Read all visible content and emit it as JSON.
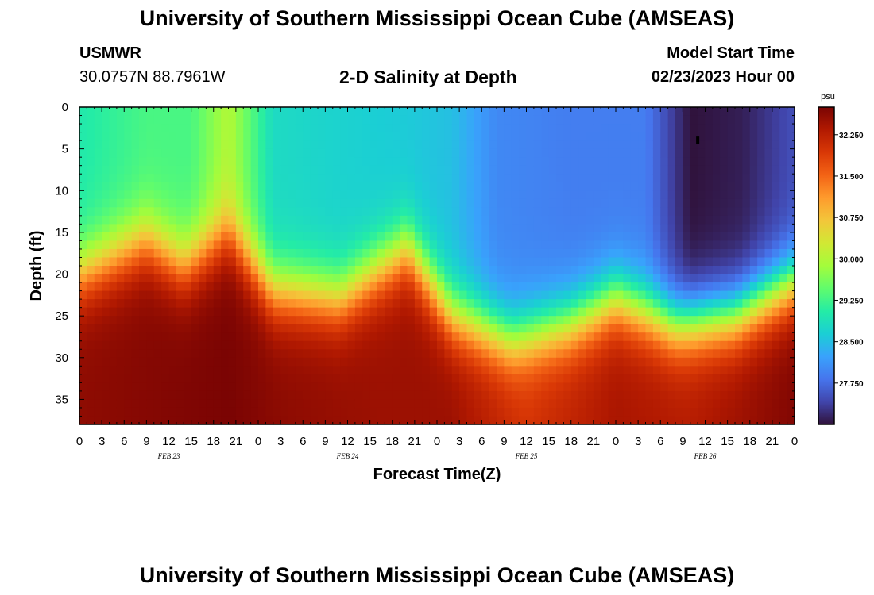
{
  "header": {
    "title": "University of Southern Mississippi Ocean Cube (AMSEAS)",
    "station_id": "USMWR",
    "coordinates": "30.0757N  88.7961W",
    "plot_title": "2-D Salinity at Depth",
    "model_start_label": "Model Start Time",
    "model_start_value": "02/23/2023 Hour 00"
  },
  "footer": {
    "title": "University of Southern Mississippi Ocean Cube (AMSEAS)"
  },
  "chart_data": {
    "type": "heatmap",
    "title": "2-D Salinity at Depth",
    "xlabel": "Forecast Time(Z)",
    "ylabel": "Depth (ft)",
    "x_ticks": [
      "0",
      "3",
      "6",
      "9",
      "12",
      "15",
      "18",
      "21",
      "0",
      "3",
      "6",
      "9",
      "12",
      "15",
      "18",
      "21",
      "0",
      "3",
      "6",
      "9",
      "12",
      "15",
      "18",
      "21",
      "0",
      "3",
      "6",
      "9",
      "12",
      "15",
      "18",
      "21",
      "0"
    ],
    "x_range_hours": [
      0,
      96
    ],
    "date_labels": [
      {
        "hour": 12,
        "text": "FEB 23"
      },
      {
        "hour": 36,
        "text": "FEB 24"
      },
      {
        "hour": 60,
        "text": "FEB 25"
      },
      {
        "hour": 84,
        "text": "FEB 26"
      }
    ],
    "y_ticks": [
      "0",
      "5",
      "10",
      "15",
      "20",
      "25",
      "30",
      "35"
    ],
    "y_range_ft": [
      0,
      38
    ],
    "colorbar": {
      "unit": "psu",
      "range": [
        27.0,
        32.75
      ],
      "tick_values": [
        32.25,
        31.5,
        30.75,
        30.0,
        29.25,
        28.5,
        27.75
      ],
      "tick_labels": [
        "32.250",
        "31.500",
        "30.750",
        "30.000",
        "29.250",
        "28.500",
        "27.750"
      ],
      "colors": [
        "#30123b",
        "#4145ab",
        "#4675ed",
        "#39a2fc",
        "#1bcfd4",
        "#24eca6",
        "#61fc6c",
        "#a4fc3b",
        "#d1e834",
        "#f3c63a",
        "#fe9b2d",
        "#f36315",
        "#d93806",
        "#b11901",
        "#7a0403"
      ]
    },
    "pycnocline_depth_ft": [
      {
        "hour": 0,
        "depth": 20
      },
      {
        "hour": 9,
        "depth": 16
      },
      {
        "hour": 14,
        "depth": 19
      },
      {
        "hour": 20,
        "depth": 15
      },
      {
        "hour": 26,
        "depth": 22
      },
      {
        "hour": 35,
        "depth": 23
      },
      {
        "hour": 44,
        "depth": 17
      },
      {
        "hour": 50,
        "depth": 25
      },
      {
        "hour": 58,
        "depth": 28
      },
      {
        "hour": 66,
        "depth": 26
      },
      {
        "hour": 72,
        "depth": 23
      },
      {
        "hour": 80,
        "depth": 26
      },
      {
        "hour": 88,
        "depth": 25
      },
      {
        "hour": 96,
        "depth": 21
      }
    ],
    "surface_salinity_psu": [
      {
        "hour": 0,
        "value": 29.0
      },
      {
        "hour": 9,
        "value": 29.3
      },
      {
        "hour": 15,
        "value": 29.3
      },
      {
        "hour": 20,
        "value": 30.0
      },
      {
        "hour": 26,
        "value": 28.8
      },
      {
        "hour": 34,
        "value": 28.7
      },
      {
        "hour": 44,
        "value": 28.6
      },
      {
        "hour": 50,
        "value": 28.5
      },
      {
        "hour": 56,
        "value": 28.0
      },
      {
        "hour": 66,
        "value": 27.9
      },
      {
        "hour": 76,
        "value": 27.9
      },
      {
        "hour": 82,
        "value": 27.0
      },
      {
        "hour": 89,
        "value": 27.1
      },
      {
        "hour": 96,
        "value": 27.5
      }
    ],
    "bottom_salinity_psu": [
      {
        "hour": 0,
        "value": 32.6
      },
      {
        "hour": 20,
        "value": 32.75
      },
      {
        "hour": 28,
        "value": 32.6
      },
      {
        "hour": 40,
        "value": 32.5
      },
      {
        "hour": 50,
        "value": 32.5
      },
      {
        "hour": 60,
        "value": 32.0
      },
      {
        "hour": 72,
        "value": 32.4
      },
      {
        "hour": 82,
        "value": 32.3
      },
      {
        "hour": 96,
        "value": 32.7
      }
    ],
    "marker": {
      "hour": 83,
      "depth_ft": 4
    }
  }
}
